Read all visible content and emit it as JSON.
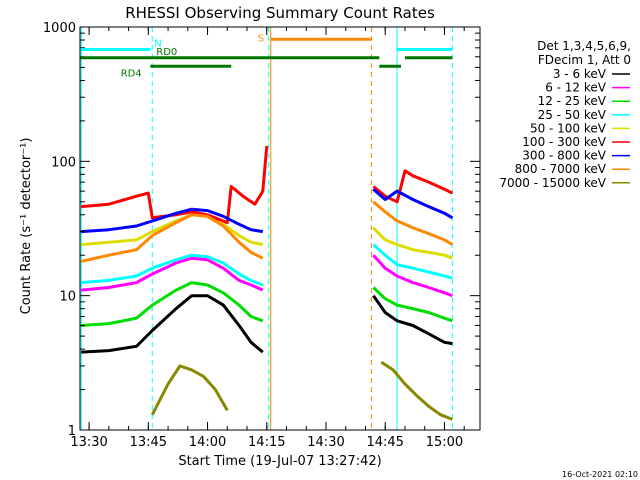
{
  "chart_data": {
    "type": "line",
    "title": "RHESSI Observing Summary Count Rates",
    "xlabel": "Start Time (19-Jul-07 13:27:42)",
    "ylabel": "Count Rate (s⁻¹ detector⁻¹)",
    "y_scale": "log",
    "ylim": [
      1,
      1000
    ],
    "xlim": [
      "13:27:42",
      "15:09:00"
    ],
    "x_ticks": [
      "13:30",
      "13:45",
      "14:00",
      "14:15",
      "14:30",
      "14:45",
      "15:00"
    ],
    "y_ticks": [
      "1",
      "10",
      "100",
      "1000"
    ],
    "timestamp": "16-Oct-2021 02:10",
    "legend": {
      "position": "right",
      "header": [
        "Det 1,3,4,5,6,9,",
        "FDecim 1, Att 0"
      ],
      "entries": [
        {
          "label": "3 - 6 keV",
          "color": "#000000"
        },
        {
          "label": "6 - 12 keV",
          "color": "#ff00ff"
        },
        {
          "label": "12 - 25 keV",
          "color": "#00dd00"
        },
        {
          "label": "25 - 50 keV",
          "color": "#00ffff"
        },
        {
          "label": "50 - 100 keV",
          "color": "#dddd00"
        },
        {
          "label": "100 - 300 keV",
          "color": "#ff0000"
        },
        {
          "label": "300 - 800 keV",
          "color": "#0000ff"
        },
        {
          "label": "800 - 7000 keV",
          "color": "#ff8800"
        },
        {
          "label": "7000 - 15000 keV",
          "color": "#888800"
        }
      ]
    },
    "flags": [
      {
        "label": "N",
        "color": "#00ffff",
        "level": 680,
        "segments": [
          [
            "13:27:42",
            "13:45:30"
          ],
          [
            "14:48:00",
            "15:02:00"
          ]
        ]
      },
      {
        "label": "RD0",
        "color": "#007700",
        "level": 590,
        "segments": [
          [
            "13:27:42",
            "14:43:30"
          ],
          [
            "14:50:00",
            "15:02:00"
          ]
        ]
      },
      {
        "label": "RD4",
        "color": "#007700",
        "level": 510,
        "segments": [
          [
            "13:45:30",
            "14:06:00"
          ],
          [
            "14:43:30",
            "14:49:00"
          ]
        ]
      },
      {
        "label": "S",
        "color": "#ff8800",
        "level": 810,
        "segments": [
          [
            "14:16:00",
            "14:41:30"
          ]
        ]
      }
    ],
    "vlines": [
      {
        "time": "13:28:00",
        "color": "#00ffff",
        "style": "solid"
      },
      {
        "time": "13:46:00",
        "color": "#00ffff",
        "style": "dashed"
      },
      {
        "time": "14:15:30",
        "color": "#00ffff",
        "style": "dashed"
      },
      {
        "time": "14:16:00",
        "color": "#ff8800",
        "style": "solid"
      },
      {
        "time": "14:41:30",
        "color": "#ff8800",
        "style": "dashed"
      },
      {
        "time": "14:48:00",
        "color": "#00ffff",
        "style": "solid"
      },
      {
        "time": "15:02:00",
        "color": "#00ffff",
        "style": "dashed"
      }
    ],
    "series": [
      {
        "name": "3 - 6 keV",
        "color": "#000000",
        "segments": [
          {
            "x": [
              "13:28",
              "13:35",
              "13:42",
              "13:46",
              "13:52",
              "13:56",
              "14:00",
              "14:04",
              "14:08",
              "14:11",
              "14:14"
            ],
            "y": [
              3.8,
              3.9,
              4.2,
              5.5,
              8,
              10,
              10,
              8.5,
              6,
              4.5,
              3.8
            ]
          },
          {
            "x": [
              "14:42",
              "14:45",
              "14:48",
              "14:52",
              "14:56",
              "15:00",
              "15:02"
            ],
            "y": [
              10,
              7.5,
              6.5,
              6,
              5.2,
              4.5,
              4.4
            ]
          }
        ]
      },
      {
        "name": "6 - 12 keV",
        "color": "#ff00ff",
        "segments": [
          {
            "x": [
              "13:28",
              "13:35",
              "13:42",
              "13:46",
              "13:52",
              "13:56",
              "14:00",
              "14:04",
              "14:08",
              "14:11",
              "14:14"
            ],
            "y": [
              11,
              11.5,
              12.5,
              14.5,
              17.5,
              19,
              18.5,
              16,
              13,
              12,
              11
            ]
          },
          {
            "x": [
              "14:42",
              "14:45",
              "14:48",
              "14:52",
              "14:56",
              "15:00",
              "15:02"
            ],
            "y": [
              20,
              16,
              14,
              12.5,
              11.5,
              10.5,
              10
            ]
          }
        ]
      },
      {
        "name": "12 - 25 keV",
        "color": "#00dd00",
        "segments": [
          {
            "x": [
              "13:28",
              "13:35",
              "13:42",
              "13:46",
              "13:52",
              "13:56",
              "14:00",
              "14:04",
              "14:08",
              "14:11",
              "14:14"
            ],
            "y": [
              6,
              6.2,
              6.8,
              8.5,
              11,
              12.5,
              12,
              10.5,
              8.5,
              7,
              6.5
            ]
          },
          {
            "x": [
              "14:42",
              "14:45",
              "14:48",
              "14:52",
              "14:56",
              "15:00",
              "15:02"
            ],
            "y": [
              11.5,
              9.5,
              8.5,
              8,
              7.5,
              6.8,
              6.5
            ]
          }
        ]
      },
      {
        "name": "25 - 50 keV",
        "color": "#00ffff",
        "segments": [
          {
            "x": [
              "13:28",
              "13:35",
              "13:42",
              "13:46",
              "13:52",
              "13:56",
              "14:00",
              "14:04",
              "14:08",
              "14:11",
              "14:14"
            ],
            "y": [
              12.5,
              13,
              14,
              16,
              18.5,
              20,
              19.5,
              17.5,
              14.5,
              13,
              12
            ]
          },
          {
            "x": [
              "14:42",
              "14:45",
              "14:48",
              "14:52",
              "14:56",
              "15:00",
              "15:02"
            ],
            "y": [
              24,
              20,
              17,
              16,
              15,
              14,
              13.5
            ]
          }
        ]
      },
      {
        "name": "50 - 100 keV",
        "color": "#dddd00",
        "segments": [
          {
            "x": [
              "13:28",
              "13:35",
              "13:42",
              "13:46",
              "13:52",
              "13:56",
              "14:00",
              "14:04",
              "14:08",
              "14:11",
              "14:14"
            ],
            "y": [
              24,
              25,
              26,
              30,
              36,
              40,
              39,
              34,
              28,
              25,
              24
            ]
          },
          {
            "x": [
              "14:42",
              "14:45",
              "14:48",
              "14:52",
              "14:56",
              "15:00",
              "15:02"
            ],
            "y": [
              32,
              26,
              24,
              22,
              21,
              20,
              19
            ]
          }
        ]
      },
      {
        "name": "100 - 300 keV",
        "color": "#ff0000",
        "segments": [
          {
            "x": [
              "13:28",
              "13:35",
              "13:42",
              "13:45",
              "13:46",
              "13:52",
              "13:56",
              "14:00",
              "14:05",
              "14:06",
              "14:09",
              "14:12",
              "14:14",
              "14:15"
            ],
            "y": [
              46,
              48,
              55,
              58,
              38,
              40,
              42,
              40,
              35,
              65,
              55,
              48,
              60,
              130
            ]
          },
          {
            "x": [
              "14:42",
              "14:45",
              "14:48",
              "14:50",
              "14:52",
              "14:56",
              "15:00",
              "15:02"
            ],
            "y": [
              65,
              55,
              50,
              85,
              78,
              70,
              62,
              58
            ]
          }
        ]
      },
      {
        "name": "300 - 800 keV",
        "color": "#0000ff",
        "segments": [
          {
            "x": [
              "13:28",
              "13:35",
              "13:42",
              "13:46",
              "13:52",
              "13:56",
              "14:00",
              "14:04",
              "14:08",
              "14:11",
              "14:14"
            ],
            "y": [
              30,
              31,
              33,
              36,
              41,
              44,
              43,
              39,
              34,
              31,
              30
            ]
          },
          {
            "x": [
              "14:42",
              "14:45",
              "14:48",
              "14:52",
              "14:56",
              "15:00",
              "15:02"
            ],
            "y": [
              62,
              52,
              60,
              52,
              46,
              41,
              38
            ]
          }
        ]
      },
      {
        "name": "800 - 7000 keV",
        "color": "#ff8800",
        "segments": [
          {
            "x": [
              "13:28",
              "13:35",
              "13:42",
              "13:46",
              "13:52",
              "13:56",
              "14:00",
              "14:04",
              "14:08",
              "14:11",
              "14:14"
            ],
            "y": [
              18,
              20,
              22,
              28,
              35,
              40,
              39,
              33,
              25,
              21,
              19
            ]
          },
          {
            "x": [
              "14:42",
              "14:45",
              "14:48",
              "14:52",
              "14:56",
              "15:00",
              "15:02"
            ],
            "y": [
              50,
              42,
              36,
              32,
              29,
              26,
              24
            ]
          }
        ]
      },
      {
        "name": "7000 - 15000 keV",
        "color": "#888800",
        "segments": [
          {
            "x": [
              "13:46",
              "13:50",
              "13:53",
              "13:56",
              "13:59",
              "14:02",
              "14:05"
            ],
            "y": [
              1.3,
              2.2,
              3.0,
              2.8,
              2.5,
              2.0,
              1.4
            ]
          },
          {
            "x": [
              "14:44",
              "14:47",
              "14:50",
              "14:53",
              "14:56",
              "14:59",
              "15:02"
            ],
            "y": [
              3.2,
              2.8,
              2.2,
              1.8,
              1.5,
              1.3,
              1.2
            ]
          }
        ]
      }
    ]
  }
}
